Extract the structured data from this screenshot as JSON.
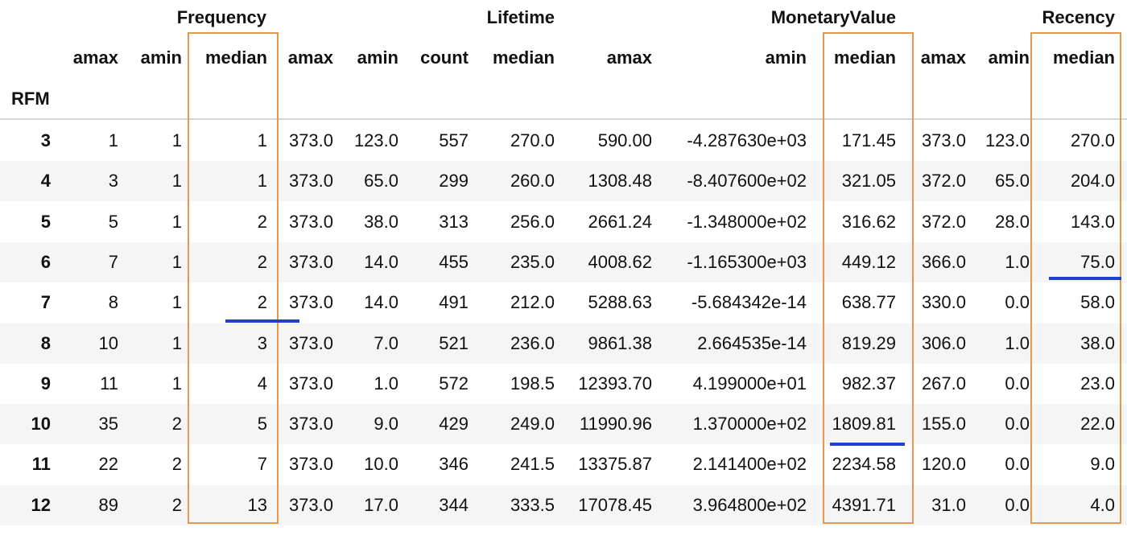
{
  "table": {
    "index_name": "RFM",
    "group_headers": [
      "Frequency",
      "Lifetime",
      "MonetaryValue",
      "Recency"
    ],
    "columns": [
      "amax",
      "amin",
      "median",
      "amax",
      "amin",
      "count",
      "median",
      "amax",
      "amin",
      "median",
      "amax",
      "amin",
      "median"
    ],
    "rows": [
      {
        "index": "3",
        "cells": [
          "1",
          "1",
          "1",
          "373.0",
          "123.0",
          "557",
          "270.0",
          "590.00",
          "-4.287630e+03",
          "171.45",
          "373.0",
          "123.0",
          "270.0"
        ]
      },
      {
        "index": "4",
        "cells": [
          "3",
          "1",
          "1",
          "373.0",
          "65.0",
          "299",
          "260.0",
          "1308.48",
          "-8.407600e+02",
          "321.05",
          "372.0",
          "65.0",
          "204.0"
        ]
      },
      {
        "index": "5",
        "cells": [
          "5",
          "1",
          "2",
          "373.0",
          "38.0",
          "313",
          "256.0",
          "2661.24",
          "-1.348000e+02",
          "316.62",
          "372.0",
          "28.0",
          "143.0"
        ]
      },
      {
        "index": "6",
        "cells": [
          "7",
          "1",
          "2",
          "373.0",
          "14.0",
          "455",
          "235.0",
          "4008.62",
          "-1.165300e+03",
          "449.12",
          "366.0",
          "1.0",
          "75.0"
        ]
      },
      {
        "index": "7",
        "cells": [
          "8",
          "1",
          "2",
          "373.0",
          "14.0",
          "491",
          "212.0",
          "5288.63",
          "-5.684342e-14",
          "638.77",
          "330.0",
          "0.0",
          "58.0"
        ]
      },
      {
        "index": "8",
        "cells": [
          "10",
          "1",
          "3",
          "373.0",
          "7.0",
          "521",
          "236.0",
          "9861.38",
          "2.664535e-14",
          "819.29",
          "306.0",
          "1.0",
          "38.0"
        ]
      },
      {
        "index": "9",
        "cells": [
          "11",
          "1",
          "4",
          "373.0",
          "1.0",
          "572",
          "198.5",
          "12393.70",
          "4.199000e+01",
          "982.37",
          "267.0",
          "0.0",
          "23.0"
        ]
      },
      {
        "index": "10",
        "cells": [
          "35",
          "2",
          "5",
          "373.0",
          "9.0",
          "429",
          "249.0",
          "11990.96",
          "1.370000e+02",
          "1809.81",
          "155.0",
          "0.0",
          "22.0"
        ]
      },
      {
        "index": "11",
        "cells": [
          "22",
          "2",
          "7",
          "373.0",
          "10.0",
          "346",
          "241.5",
          "13375.87",
          "2.141400e+02",
          "2234.58",
          "120.0",
          "0.0",
          "9.0"
        ]
      },
      {
        "index": "12",
        "cells": [
          "89",
          "2",
          "13",
          "373.0",
          "17.0",
          "344",
          "333.5",
          "17078.45",
          "3.964800e+02",
          "4391.71",
          "31.0",
          "0.0",
          "4.0"
        ]
      }
    ]
  },
  "colors": {
    "highlight_box": "#e5994b",
    "underline_mark": "#1f3fd6",
    "stripe": "#f5f5f5"
  }
}
